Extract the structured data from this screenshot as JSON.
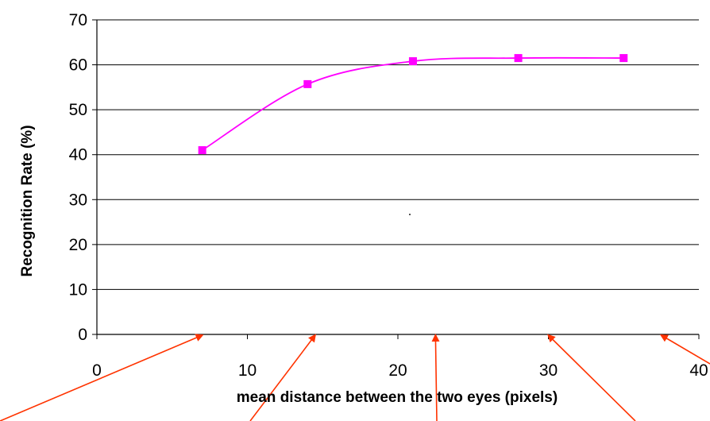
{
  "chart_data": {
    "type": "line",
    "title": "",
    "xlabel": "mean distance between the two eyes (pixels)",
    "ylabel": "Recognition Rate (%)",
    "xlim": [
      0,
      40
    ],
    "ylim": [
      0,
      70
    ],
    "xticks": [
      0,
      10,
      20,
      30,
      40
    ],
    "yticks": [
      0,
      10,
      20,
      30,
      40,
      50,
      60,
      70
    ],
    "grid": "horizontal",
    "legend": "none",
    "series": [
      {
        "x": [
          7,
          14,
          21,
          28,
          35
        ],
        "values": [
          41,
          55.7,
          60.8,
          61.5,
          61.5
        ],
        "color": "#ff00ff",
        "marker": "square",
        "smooth": true
      }
    ],
    "annotations": {
      "type": "arrows",
      "color": "#ff3300",
      "targets_x": [
        7,
        14.5,
        22.5,
        30,
        37.5
      ]
    }
  }
}
